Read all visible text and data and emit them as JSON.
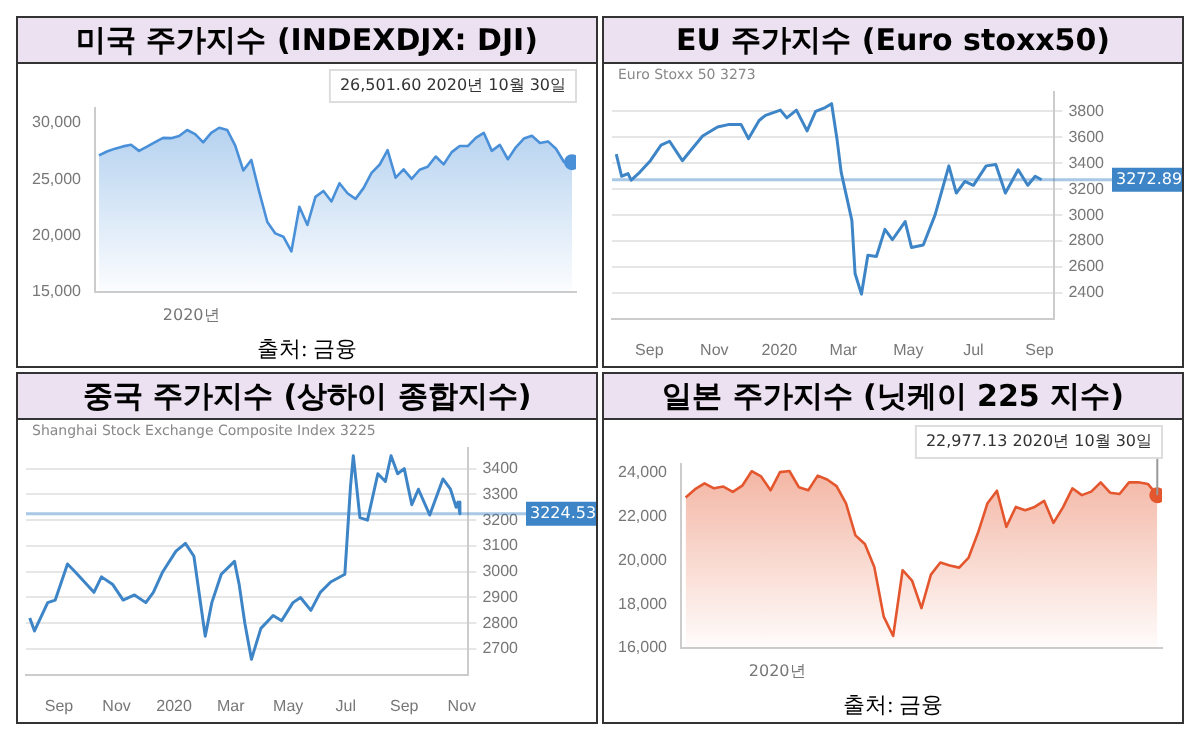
{
  "chart_data": [
    {
      "type": "area",
      "title": "미국 주가지수 (INDEXDJX: DJI)",
      "xlabel": "2020년",
      "annotations": [
        "출처: 금융",
        "26,501.60 2020년 10월 30일"
      ],
      "categories": [
        null,
        null,
        null,
        null,
        null,
        null,
        null,
        null,
        null,
        null,
        null,
        null,
        null,
        null,
        null,
        null,
        null,
        null,
        null,
        null,
        null,
        null,
        null,
        null,
        null,
        null,
        null,
        null,
        null,
        null,
        null,
        null,
        null,
        null,
        null,
        null,
        null,
        null,
        null,
        null,
        null,
        null,
        null,
        null,
        null,
        null,
        null,
        null,
        null,
        null,
        null,
        null,
        null,
        null,
        null,
        null,
        null,
        null,
        null,
        null
      ],
      "ylim": [
        15000,
        31300
      ],
      "yticks": [
        {
          "value": 15000,
          "label": "15,000"
        },
        {
          "value": 20000,
          "label": "20,000"
        },
        {
          "value": 25000,
          "label": "25,000"
        },
        {
          "value": 30000,
          "label": "30,000"
        }
      ],
      "grid": false,
      "legend": false,
      "series": [
        {
          "color": "#4a90d9",
          "values": [
            27100,
            27450,
            27700,
            27900,
            28050,
            27500,
            27880,
            28270,
            28650,
            28630,
            28820,
            29350,
            28990,
            28250,
            29100,
            29550,
            29350,
            27960,
            25770,
            26700,
            23850,
            21200,
            20190,
            19900,
            18590,
            22550,
            20940,
            23430,
            23950,
            23020,
            24630,
            23750,
            23250,
            24200,
            25550,
            26270,
            27570,
            25130,
            25870,
            25020,
            25830,
            26090,
            27000,
            26310,
            27390,
            27930,
            27930,
            28650,
            29100,
            27500,
            28030,
            26760,
            27820,
            28590,
            28840,
            28200,
            28340,
            27690,
            26520,
            26501.6
          ]
        },
        {
          "type": "scatter",
          "marker": "circle",
          "color": "#4a90d9",
          "values": [
            null,
            null,
            null,
            null,
            null,
            null,
            null,
            null,
            null,
            null,
            null,
            null,
            null,
            null,
            null,
            null,
            null,
            null,
            null,
            null,
            null,
            null,
            null,
            null,
            null,
            null,
            null,
            null,
            null,
            null,
            null,
            null,
            null,
            null,
            null,
            null,
            null,
            null,
            null,
            null,
            null,
            null,
            null,
            null,
            null,
            null,
            null,
            null,
            null,
            null,
            null,
            null,
            null,
            null,
            null,
            null,
            null,
            null,
            null,
            26501.6
          ]
        }
      ]
    },
    {
      "type": "line",
      "title": "EU 주가지수 (Euro stoxx50)",
      "subtitle": "Euro Stoxx 50 3273",
      "xlim": [
        "2019-07-28",
        "2020-09-15"
      ],
      "xticks": [
        {
          "value": "2019-09-01",
          "label": "Sep"
        },
        {
          "value": "2019-11-01",
          "label": "Nov"
        },
        {
          "value": "2020-01-01",
          "label": "2020"
        },
        {
          "value": "2020-03-01",
          "label": "Mar"
        },
        {
          "value": "2020-05-01",
          "label": "May"
        },
        {
          "value": "2020-07-01",
          "label": "Jul"
        },
        {
          "value": "2020-09-01",
          "label": "Sep"
        }
      ],
      "y2lim": [
        2200,
        3950
      ],
      "y2ticks": [
        2400,
        2600,
        2800,
        3000,
        3200,
        3400,
        3600,
        3800
      ],
      "grid": "y",
      "legend": false,
      "ref_lines": [
        {
          "axis": "y2",
          "value": 3272.89,
          "label": "3272.89",
          "color": "#3d85c6"
        }
      ],
      "series": [
        {
          "axis": "y2",
          "color": "#3d85c6",
          "x": [
            "2019-08-01",
            "2019-08-06",
            "2019-08-12",
            "2019-08-15",
            "2019-08-23",
            "2019-09-02",
            "2019-09-12",
            "2019-09-20",
            "2019-10-02",
            "2019-10-10",
            "2019-10-21",
            "2019-11-04",
            "2019-11-15",
            "2019-11-26",
            "2019-12-03",
            "2019-12-13",
            "2019-12-19",
            "2020-01-02",
            "2020-01-08",
            "2020-01-17",
            "2020-01-27",
            "2020-02-04",
            "2020-02-13",
            "2020-02-19",
            "2020-02-24",
            "2020-02-28",
            "2020-03-09",
            "2020-03-12",
            "2020-03-18",
            "2020-03-24",
            "2020-04-01",
            "2020-04-09",
            "2020-04-16",
            "2020-04-28",
            "2020-05-04",
            "2020-05-15",
            "2020-05-26",
            "2020-06-08",
            "2020-06-15",
            "2020-06-23",
            "2020-07-01",
            "2020-07-13",
            "2020-07-22",
            "2020-07-31",
            "2020-08-12",
            "2020-08-21",
            "2020-08-28",
            "2020-09-03"
          ],
          "values": [
            3470,
            3300,
            3320,
            3270,
            3330,
            3420,
            3540,
            3570,
            3420,
            3500,
            3610,
            3680,
            3700,
            3700,
            3590,
            3730,
            3770,
            3810,
            3750,
            3810,
            3650,
            3800,
            3830,
            3860,
            3590,
            3330,
            2960,
            2550,
            2390,
            2690,
            2680,
            2890,
            2810,
            2950,
            2750,
            2770,
            3000,
            3380,
            3170,
            3260,
            3230,
            3380,
            3390,
            3170,
            3350,
            3230,
            3300,
            3273
          ]
        }
      ]
    },
    {
      "type": "line",
      "title": "중국 주가지수 (상하이 종합지수)",
      "subtitle": "Shanghai Stock Exchange Composite Index 3225",
      "xlim": [
        "2019-07-28",
        "2020-11-08"
      ],
      "xticks": [
        {
          "value": "2019-09-01",
          "label": "Sep"
        },
        {
          "value": "2019-11-01",
          "label": "Nov"
        },
        {
          "value": "2020-01-01",
          "label": "2020"
        },
        {
          "value": "2020-03-01",
          "label": "Mar"
        },
        {
          "value": "2020-05-01",
          "label": "May"
        },
        {
          "value": "2020-07-01",
          "label": "Jul"
        },
        {
          "value": "2020-09-01",
          "label": "Sep"
        },
        {
          "value": "2020-11-01",
          "label": "Nov"
        }
      ],
      "y2lim": [
        2600,
        3480
      ],
      "y2ticks": [
        2700,
        2800,
        2900,
        3000,
        3100,
        3200,
        3300,
        3400
      ],
      "grid": "y",
      "legend": false,
      "ref_lines": [
        {
          "axis": "y2",
          "value": 3224.53,
          "label": "3224.53",
          "color": "#3d85c6"
        }
      ],
      "series": [
        {
          "axis": "y2",
          "color": "#3d85c6",
          "x": [
            "2019-08-01",
            "2019-08-06",
            "2019-08-20",
            "2019-08-28",
            "2019-09-10",
            "2019-09-18",
            "2019-10-08",
            "2019-10-16",
            "2019-10-28",
            "2019-11-08",
            "2019-11-20",
            "2019-12-02",
            "2019-12-10",
            "2019-12-20",
            "2020-01-03",
            "2020-01-13",
            "2020-01-22",
            "2020-02-03",
            "2020-02-10",
            "2020-02-20",
            "2020-03-05",
            "2020-03-10",
            "2020-03-16",
            "2020-03-23",
            "2020-04-02",
            "2020-04-15",
            "2020-04-24",
            "2020-05-06",
            "2020-05-14",
            "2020-05-25",
            "2020-06-04",
            "2020-06-15",
            "2020-06-30",
            "2020-07-06",
            "2020-07-09",
            "2020-07-16",
            "2020-07-24",
            "2020-08-04",
            "2020-08-12",
            "2020-08-18",
            "2020-08-25",
            "2020-09-01",
            "2020-09-09",
            "2020-09-16",
            "2020-09-28",
            "2020-10-12",
            "2020-10-20",
            "2020-10-26",
            "2020-10-28",
            "2020-10-30"
          ],
          "values": [
            2820,
            2770,
            2880,
            2890,
            3030,
            3000,
            2920,
            2980,
            2950,
            2890,
            2910,
            2880,
            2920,
            3000,
            3080,
            3110,
            3060,
            2750,
            2880,
            2990,
            3040,
            2950,
            2800,
            2660,
            2780,
            2830,
            2810,
            2880,
            2900,
            2850,
            2920,
            2960,
            2990,
            3330,
            3450,
            3210,
            3200,
            3380,
            3350,
            3450,
            3380,
            3400,
            3260,
            3320,
            3220,
            3360,
            3320,
            3250,
            3270,
            3225
          ]
        }
      ]
    },
    {
      "type": "area",
      "title": "일본 주가지수 (닛케이 225 지수)",
      "xlabel": "2020년",
      "annotations": [
        "출처: 금융",
        {
          "text": "22,977.13 2020년 10월 30일",
          "y": 22977.13
        }
      ],
      "categories": [
        null,
        null,
        null,
        null,
        null,
        null,
        null,
        null,
        null,
        null,
        null,
        null,
        null,
        null,
        null,
        null,
        null,
        null,
        null,
        null,
        null,
        null,
        null,
        null,
        null,
        null,
        null,
        null,
        null,
        null,
        null,
        null,
        null,
        null,
        null,
        null,
        null,
        null,
        null,
        null,
        null,
        null,
        null,
        null,
        null,
        null,
        null,
        null,
        null,
        null,
        null
      ],
      "ylim": [
        16000,
        24400
      ],
      "yticks": [
        {
          "value": 16000,
          "label": "16,000"
        },
        {
          "value": 18000,
          "label": "18,000"
        },
        {
          "value": 20000,
          "label": "20,000"
        },
        {
          "value": 22000,
          "label": "22,000"
        },
        {
          "value": 24000,
          "label": "24,000"
        }
      ],
      "grid": false,
      "legend": false,
      "series": [
        {
          "color": "#e4572e",
          "values": [
            22870,
            23250,
            23520,
            23290,
            23370,
            23130,
            23410,
            24070,
            23830,
            23200,
            24030,
            24080,
            23340,
            23200,
            23870,
            23690,
            23390,
            22600,
            21140,
            20750,
            19700,
            17430,
            16550,
            19550,
            19080,
            17820,
            19350,
            19900,
            19770,
            19670,
            20130,
            21270,
            22610,
            23180,
            21530,
            22440,
            22290,
            22440,
            22720,
            21710,
            22420,
            23290,
            22980,
            23140,
            23560,
            23090,
            23030,
            23560,
            23570,
            23490,
            22977.13
          ]
        },
        {
          "type": "scatter",
          "marker": "circle",
          "color": "#e4572e",
          "values": [
            null,
            null,
            null,
            null,
            null,
            null,
            null,
            null,
            null,
            null,
            null,
            null,
            null,
            null,
            null,
            null,
            null,
            null,
            null,
            null,
            null,
            null,
            null,
            null,
            null,
            null,
            null,
            null,
            null,
            null,
            null,
            null,
            null,
            null,
            null,
            null,
            null,
            null,
            null,
            null,
            null,
            null,
            null,
            null,
            null,
            null,
            null,
            null,
            null,
            null,
            22977.13
          ]
        }
      ]
    }
  ]
}
